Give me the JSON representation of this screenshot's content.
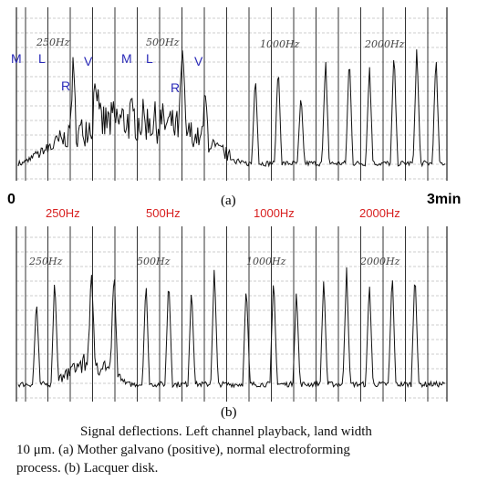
{
  "panel_a": {
    "markers": [
      "M",
      "L",
      "V",
      "R",
      "M",
      "L",
      "V",
      "R"
    ],
    "handwritten": [
      "250Hz",
      "500Hz",
      "1000Hz",
      "2000Hz"
    ],
    "caption": "(a)"
  },
  "time_axis": {
    "start": "0",
    "end": "3min"
  },
  "frequency_labels": [
    "250Hz",
    "500Hz",
    "1000Hz",
    "2000Hz"
  ],
  "panel_b": {
    "handwritten": [
      "250Hz",
      "500Hz",
      "1000Hz",
      "2000Hz"
    ],
    "caption": "(b)"
  },
  "caption": {
    "lines": [
      "Signal deflections. Left channel playback, land width",
      "10 μm. (a) Mother galvano (positive), normal electroforming",
      "process. (b) Lacquer disk."
    ]
  }
}
